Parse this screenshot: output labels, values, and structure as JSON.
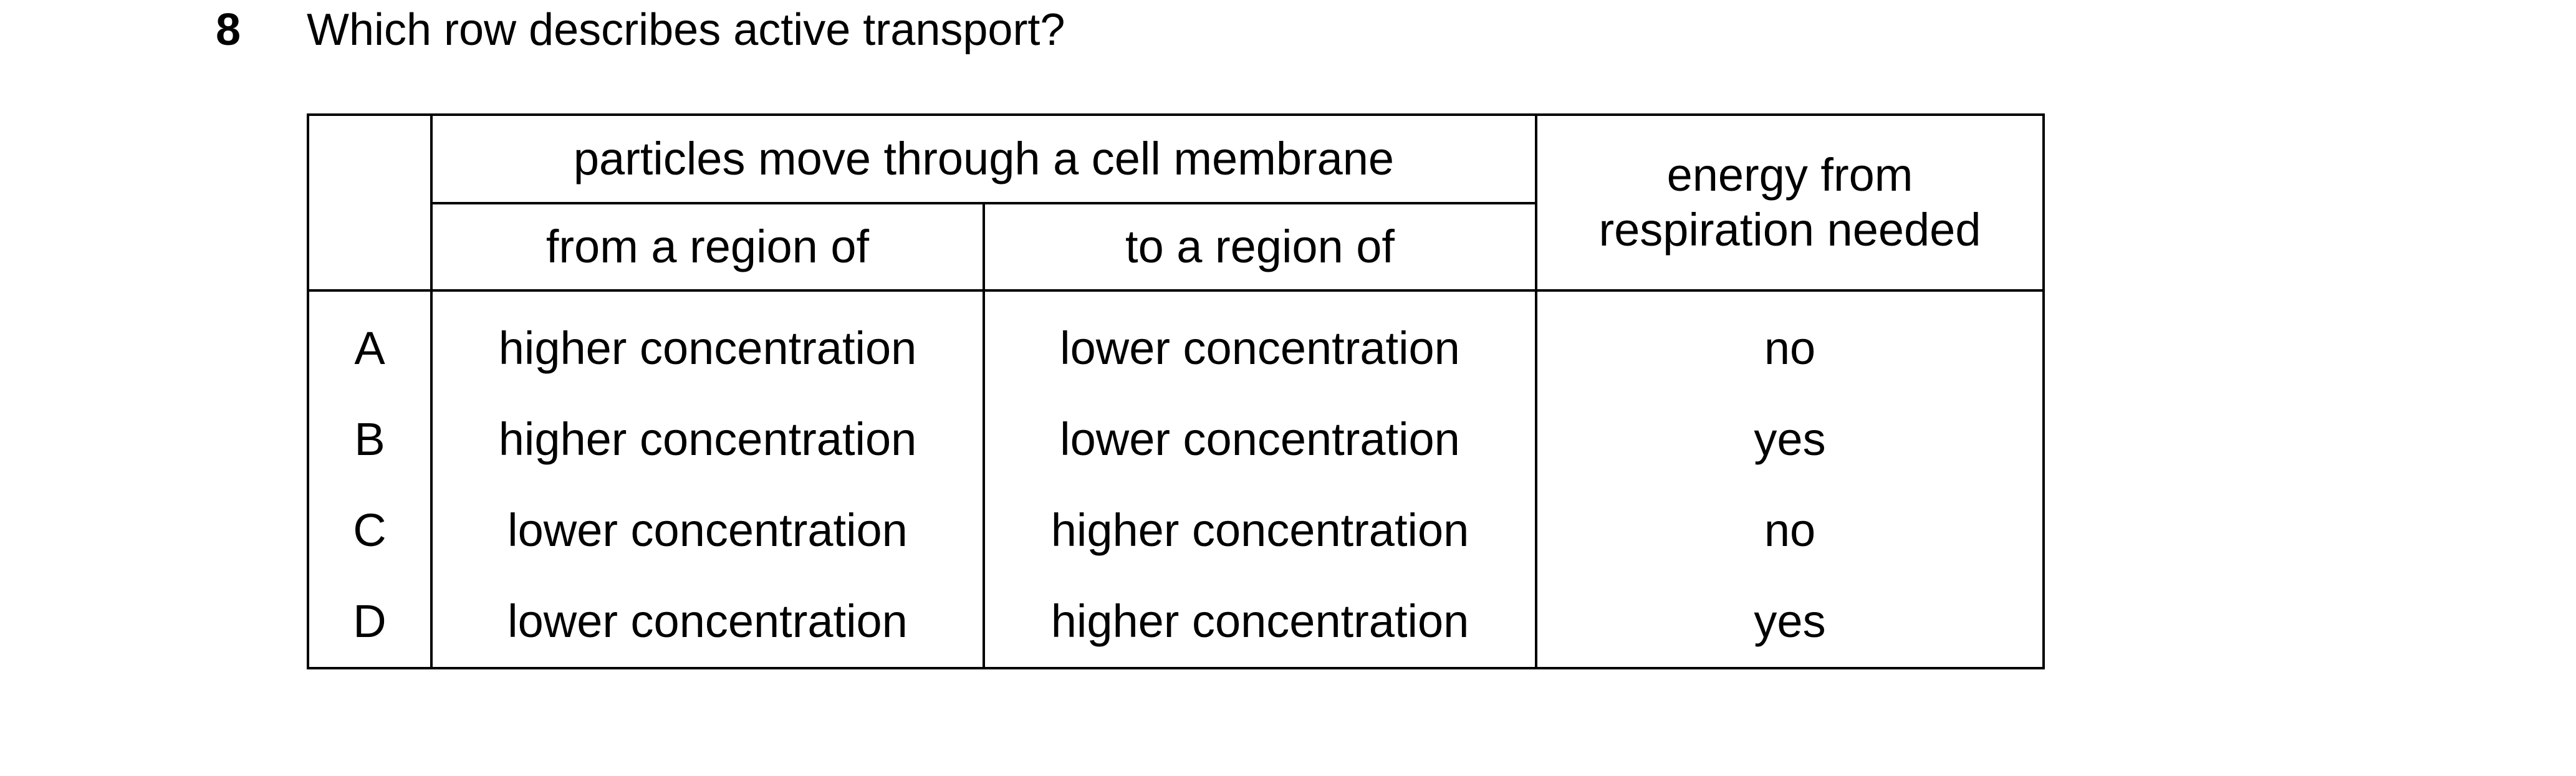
{
  "question": {
    "number": "8",
    "text": "Which row describes active transport?"
  },
  "table": {
    "group_header": "particles move through a cell membrane",
    "col_from": "from a region of",
    "col_to": "to a region of",
    "col_energy_line1": "energy from",
    "col_energy_line2": "respiration needed",
    "rows": [
      {
        "letter": "A",
        "from": "higher concentration",
        "to": "lower concentration",
        "energy": "no"
      },
      {
        "letter": "B",
        "from": "higher concentration",
        "to": "lower concentration",
        "energy": "yes"
      },
      {
        "letter": "C",
        "from": "lower concentration",
        "to": "higher concentration",
        "energy": "no"
      },
      {
        "letter": "D",
        "from": "lower concentration",
        "to": "higher concentration",
        "energy": "yes"
      }
    ]
  }
}
